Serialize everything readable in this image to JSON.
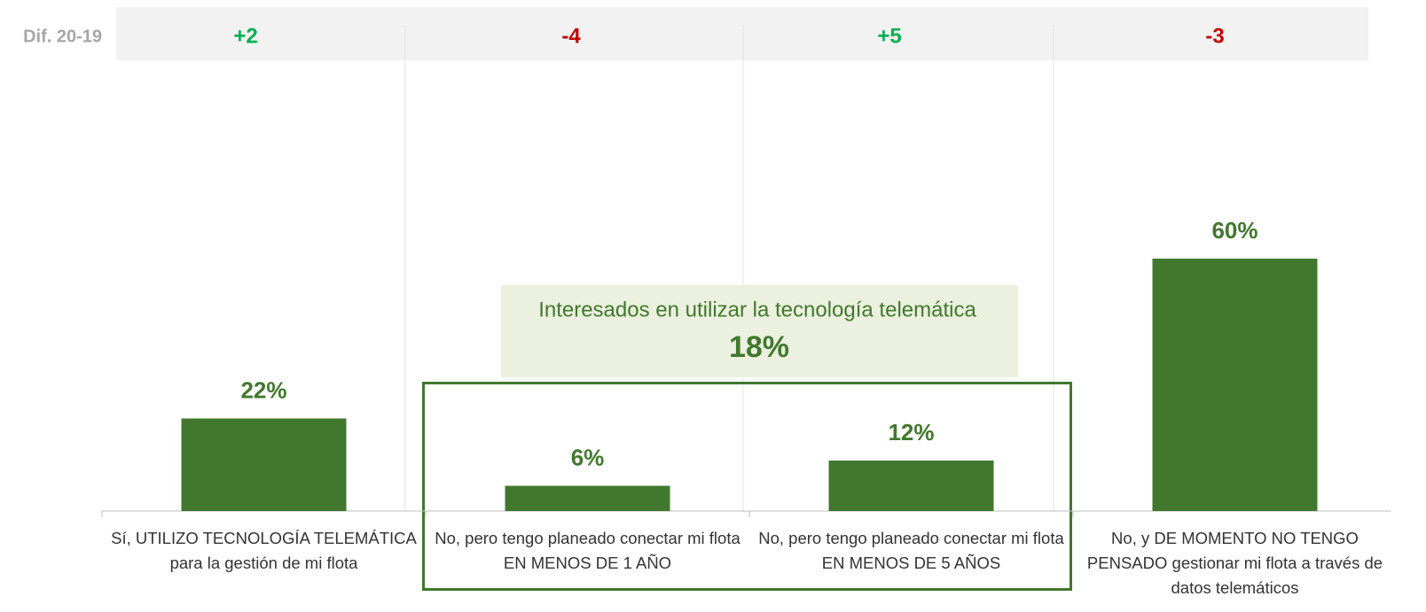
{
  "chart_data": {
    "type": "bar",
    "categories": [
      "Sí, UTILIZO TECNOLOGÍA TELEMÁTICA para la gestión de mi flota",
      "No, pero tengo planeado conectar mi flota EN MENOS DE 1 AÑO",
      "No, pero tengo planeado conectar mi flota EN MENOS DE 5 AÑOS",
      "No, y DE MOMENTO NO TENGO PENSADO gestionar mi flota a través de datos telemáticos"
    ],
    "values": [
      22,
      6,
      12,
      60
    ],
    "value_labels": [
      "22%",
      "6%",
      "12%",
      "60%"
    ],
    "color": "#41782e",
    "diff": {
      "label": "Dif. 20-19",
      "values": [
        2,
        -4,
        5,
        -3
      ],
      "value_labels": [
        "+2",
        "-4",
        "+5",
        "-3"
      ],
      "positive_color": "#00b050",
      "negative_color": "#c00000"
    },
    "annotation": {
      "text": "Interesados en utilizar la tecnología telemática",
      "total": "18%"
    }
  }
}
